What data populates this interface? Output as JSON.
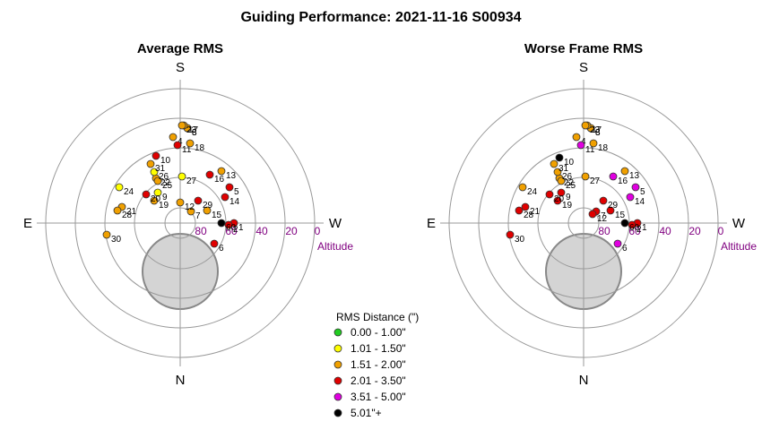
{
  "title": "Guiding Performance: 2021-11-16 S00934",
  "colors": {
    "green": "#22cc22",
    "yellow": "#ffff00",
    "orange": "#f0a000",
    "red": "#e00000",
    "magenta": "#e000e0",
    "black": "#000000",
    "alt_label": "#800080",
    "zenith_fill": "#d4d4d4"
  },
  "legend": {
    "title": "RMS Distance (\")",
    "items": [
      {
        "label": "0.00 - 1.00\"",
        "color": "green"
      },
      {
        "label": "1.01 - 1.50\"",
        "color": "yellow"
      },
      {
        "label": "1.51 - 2.00\"",
        "color": "orange"
      },
      {
        "label": "2.01 - 3.50\"",
        "color": "red"
      },
      {
        "label": "3.51 - 5.00\"",
        "color": "magenta"
      },
      {
        "label": "5.01\"+",
        "color": "black"
      }
    ]
  },
  "chart_data": [
    {
      "type": "scatter",
      "projection": "polar-altaz",
      "title": "Average RMS",
      "directions": {
        "top": "S",
        "bottom": "N",
        "left": "E",
        "right": "W"
      },
      "radial_ticks": [
        "80",
        "60",
        "40",
        "20",
        "0"
      ],
      "radial_label": "Altitude",
      "rlim": [
        90,
        0
      ],
      "points": [
        {
          "id": "1",
          "dx": 60,
          "dy": 0,
          "color": "red"
        },
        {
          "id": "2",
          "dx": 54,
          "dy": -2,
          "color": "red"
        },
        {
          "id": "3",
          "dx": 8,
          "dy": 106,
          "color": "orange"
        },
        {
          "id": "4",
          "dx": -8,
          "dy": 96,
          "color": "orange"
        },
        {
          "id": "5",
          "dx": 55,
          "dy": 40,
          "color": "red"
        },
        {
          "id": "6",
          "dx": 38,
          "dy": -23,
          "color": "red"
        },
        {
          "id": "7",
          "dx": 12,
          "dy": 13,
          "color": "orange"
        },
        {
          "id": "8",
          "dx": 8,
          "dy": 106,
          "color": "orange"
        },
        {
          "id": "9",
          "dx": -25,
          "dy": 34,
          "color": "yellow"
        },
        {
          "id": "10",
          "dx": -27,
          "dy": 75,
          "color": "red"
        },
        {
          "id": "11",
          "dx": -3,
          "dy": 87,
          "color": "red"
        },
        {
          "id": "12",
          "dx": 0,
          "dy": 23,
          "color": "orange"
        },
        {
          "id": "13",
          "dx": 46,
          "dy": 58,
          "color": "orange"
        },
        {
          "id": "14",
          "dx": 50,
          "dy": 29,
          "color": "red"
        },
        {
          "id": "15",
          "dx": 30,
          "dy": 14,
          "color": "orange"
        },
        {
          "id": "16",
          "dx": 33,
          "dy": 54,
          "color": "red"
        },
        {
          "id": "17",
          "dx": 4,
          "dy": 109,
          "color": "orange"
        },
        {
          "id": "18",
          "dx": 11,
          "dy": 89,
          "color": "orange"
        },
        {
          "id": "19",
          "dx": -29,
          "dy": 25,
          "color": "orange"
        },
        {
          "id": "20",
          "dx": -38,
          "dy": 32,
          "color": "red"
        },
        {
          "id": "21",
          "dx": -65,
          "dy": 18,
          "color": "orange"
        },
        {
          "id": "22",
          "dx": -27,
          "dy": 50,
          "color": "orange"
        },
        {
          "id": "23",
          "dx": 2,
          "dy": 109,
          "color": "orange"
        },
        {
          "id": "24",
          "dx": -68,
          "dy": 40,
          "color": "yellow"
        },
        {
          "id": "25",
          "dx": -25,
          "dy": 47,
          "color": "orange"
        },
        {
          "id": "26",
          "dx": -29,
          "dy": 57,
          "color": "yellow"
        },
        {
          "id": "27",
          "dx": 2,
          "dy": 52,
          "color": "yellow"
        },
        {
          "id": "28",
          "dx": -70,
          "dy": 14,
          "color": "orange"
        },
        {
          "id": "29",
          "dx": 20,
          "dy": 25,
          "color": "red"
        },
        {
          "id": "30",
          "dx": -82,
          "dy": -13,
          "color": "orange"
        },
        {
          "id": "31",
          "dx": -33,
          "dy": 66,
          "color": "orange"
        },
        {
          "id": "60",
          "dx": 46,
          "dy": 0,
          "color": "black"
        }
      ]
    },
    {
      "type": "scatter",
      "projection": "polar-altaz",
      "title": "Worse Frame RMS",
      "directions": {
        "top": "S",
        "bottom": "N",
        "left": "E",
        "right": "W"
      },
      "radial_ticks": [
        "80",
        "60",
        "40",
        "20",
        "0"
      ],
      "radial_label": "Altitude",
      "rlim": [
        90,
        0
      ],
      "points": [
        {
          "id": "1",
          "dx": 60,
          "dy": 0,
          "color": "red"
        },
        {
          "id": "2",
          "dx": 54,
          "dy": -2,
          "color": "red"
        },
        {
          "id": "3",
          "dx": 8,
          "dy": 106,
          "color": "orange"
        },
        {
          "id": "4",
          "dx": -8,
          "dy": 96,
          "color": "orange"
        },
        {
          "id": "5",
          "dx": 58,
          "dy": 40,
          "color": "magenta"
        },
        {
          "id": "6",
          "dx": 38,
          "dy": -23,
          "color": "magenta"
        },
        {
          "id": "7",
          "dx": 14,
          "dy": 13,
          "color": "red"
        },
        {
          "id": "8",
          "dx": 8,
          "dy": 106,
          "color": "orange"
        },
        {
          "id": "9",
          "dx": -25,
          "dy": 34,
          "color": "red"
        },
        {
          "id": "10",
          "dx": -27,
          "dy": 73,
          "color": "black"
        },
        {
          "id": "11",
          "dx": -3,
          "dy": 87,
          "color": "magenta"
        },
        {
          "id": "12",
          "dx": 10,
          "dy": 10,
          "color": "red"
        },
        {
          "id": "13",
          "dx": 46,
          "dy": 58,
          "color": "orange"
        },
        {
          "id": "14",
          "dx": 52,
          "dy": 29,
          "color": "magenta"
        },
        {
          "id": "15",
          "dx": 30,
          "dy": 14,
          "color": "red"
        },
        {
          "id": "16",
          "dx": 33,
          "dy": 52,
          "color": "magenta"
        },
        {
          "id": "17",
          "dx": 4,
          "dy": 109,
          "color": "orange"
        },
        {
          "id": "18",
          "dx": 11,
          "dy": 89,
          "color": "orange"
        },
        {
          "id": "19",
          "dx": -29,
          "dy": 25,
          "color": "red"
        },
        {
          "id": "20",
          "dx": -38,
          "dy": 32,
          "color": "red"
        },
        {
          "id": "21",
          "dx": -65,
          "dy": 18,
          "color": "red"
        },
        {
          "id": "22",
          "dx": -27,
          "dy": 50,
          "color": "orange"
        },
        {
          "id": "23",
          "dx": 2,
          "dy": 109,
          "color": "orange"
        },
        {
          "id": "24",
          "dx": -68,
          "dy": 40,
          "color": "orange"
        },
        {
          "id": "25",
          "dx": -25,
          "dy": 47,
          "color": "orange"
        },
        {
          "id": "26",
          "dx": -29,
          "dy": 57,
          "color": "orange"
        },
        {
          "id": "27",
          "dx": 2,
          "dy": 52,
          "color": "orange"
        },
        {
          "id": "28",
          "dx": -72,
          "dy": 14,
          "color": "red"
        },
        {
          "id": "29",
          "dx": 22,
          "dy": 25,
          "color": "red"
        },
        {
          "id": "30",
          "dx": -82,
          "dy": -13,
          "color": "red"
        },
        {
          "id": "31",
          "dx": -33,
          "dy": 66,
          "color": "orange"
        },
        {
          "id": "60",
          "dx": 46,
          "dy": 0,
          "color": "black"
        }
      ]
    }
  ]
}
